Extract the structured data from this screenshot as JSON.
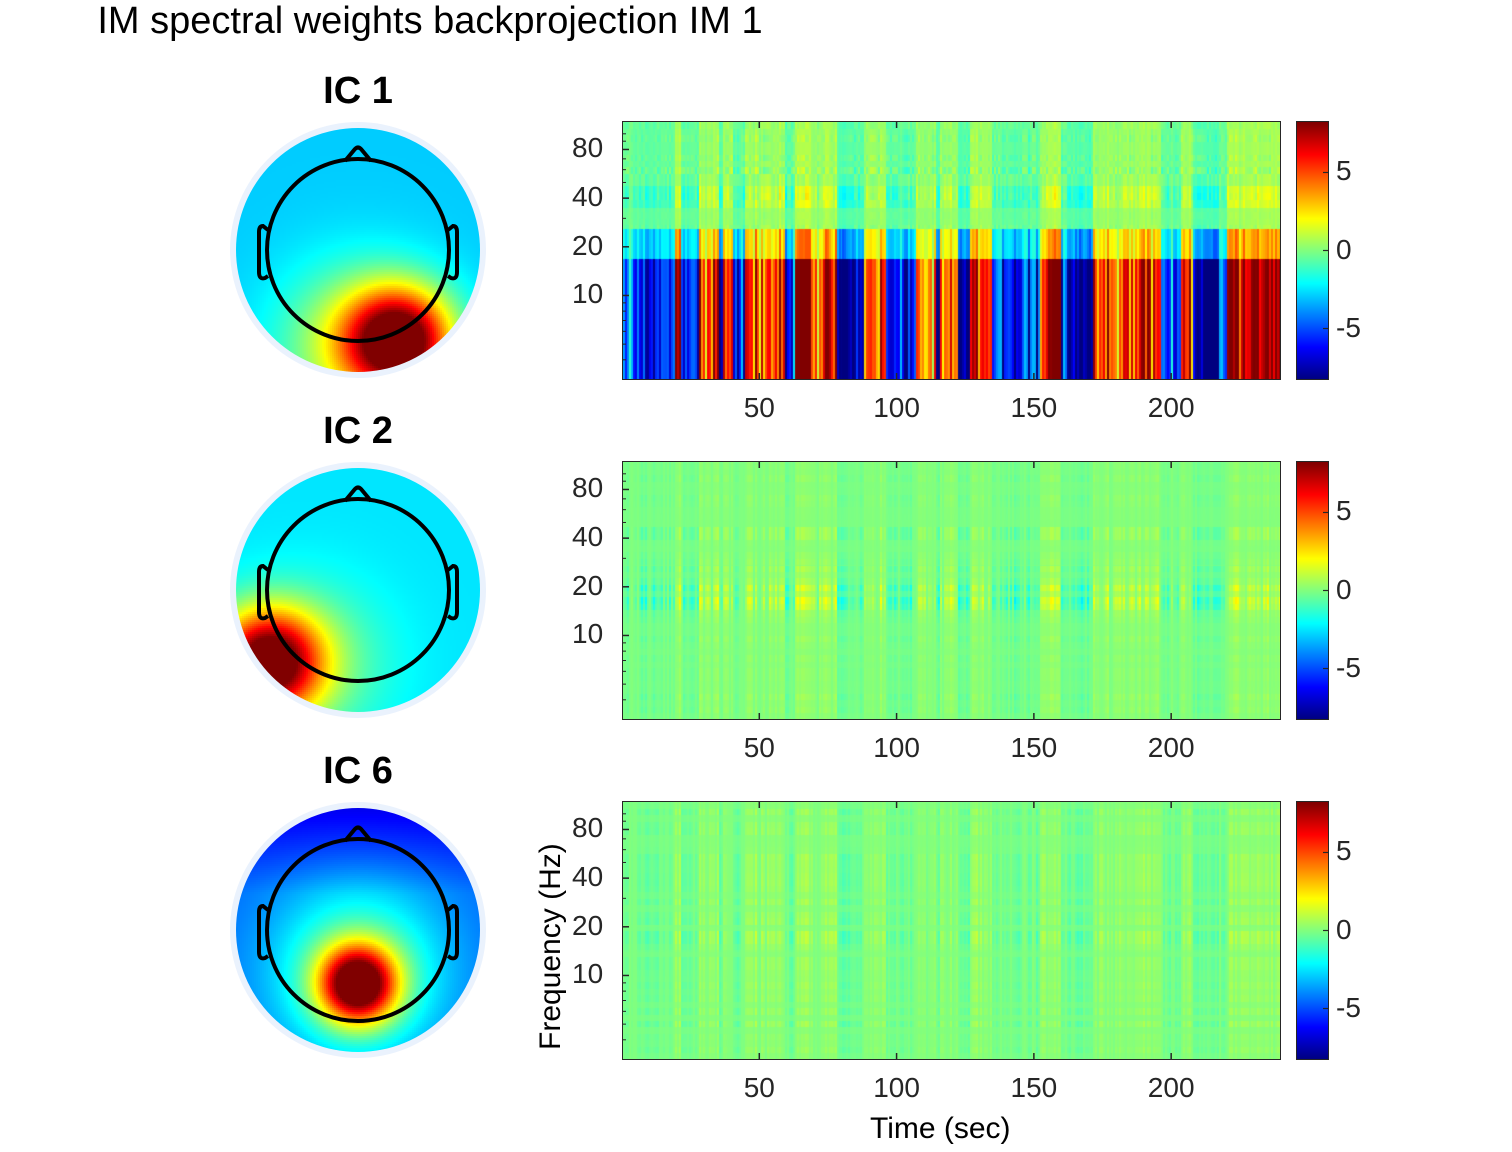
{
  "figure": {
    "title": "IM spectral weights backprojection IM 1"
  },
  "chart_data": [
    {
      "type": "heatmap",
      "panel": "IC 1",
      "topography_title": "IC 1",
      "title": "",
      "xlabel": "",
      "ylabel": "",
      "x_ticks": [
        50,
        100,
        150,
        200
      ],
      "y_ticks": [
        10,
        20,
        40,
        80
      ],
      "y_scale": "log",
      "xlim": [
        0,
        240
      ],
      "ylim": [
        3,
        120
      ],
      "colorbar": {
        "ticks": [
          -5,
          0,
          5
        ],
        "range": [
          -8.3,
          8.3
        ],
        "colormap": "jet"
      },
      "description": "Strong alternating positive/negative spectral weights concentrated below ~20 Hz (peak ~10 Hz), weaker at ~20-25 Hz and ~40 Hz",
      "amplitude": 1.0,
      "topography_peak": "right-posterior (red)",
      "grid": false
    },
    {
      "type": "heatmap",
      "panel": "IC 2",
      "topography_title": "IC 2",
      "title": "",
      "xlabel": "",
      "ylabel": "",
      "x_ticks": [
        50,
        100,
        150,
        200
      ],
      "y_ticks": [
        10,
        20,
        40,
        80
      ],
      "y_scale": "log",
      "xlim": [
        0,
        240
      ],
      "ylim": [
        3,
        120
      ],
      "colorbar": {
        "ticks": [
          -5,
          0,
          5
        ],
        "range": [
          -8.3,
          8.3
        ],
        "colormap": "jet"
      },
      "description": "Weak spectral weights near zero, slight modulation around 15-25 Hz",
      "amplitude": 0.22,
      "topography_peak": "left-posterior (red)",
      "grid": false
    },
    {
      "type": "heatmap",
      "panel": "IC 6",
      "topography_title": "IC 6",
      "title": "",
      "xlabel": "Time (sec)",
      "ylabel": "Frequency (Hz)",
      "x_ticks": [
        50,
        100,
        150,
        200
      ],
      "y_ticks": [
        10,
        20,
        40,
        80
      ],
      "y_scale": "log",
      "xlim": [
        0,
        240
      ],
      "ylim": [
        3,
        120
      ],
      "colorbar": {
        "ticks": [
          -5,
          0,
          5
        ],
        "range": [
          -8.3,
          8.3
        ],
        "colormap": "jet"
      },
      "description": "Weak spectral weights near zero with faint broadband banding",
      "amplitude": 0.15,
      "topography_peak": "central-posterior (red), frontal negative (blue)",
      "grid": false
    }
  ],
  "panels": [
    {
      "ic_title": "IC 1",
      "x_tick_labels": [
        "50",
        "100",
        "150",
        "200"
      ],
      "y_tick_labels": [
        "10",
        "20",
        "40",
        "80"
      ],
      "cbar_tick_labels": [
        "5",
        "0",
        "-5"
      ]
    },
    {
      "ic_title": "IC 2",
      "x_tick_labels": [
        "50",
        "100",
        "150",
        "200"
      ],
      "y_tick_labels": [
        "10",
        "20",
        "40",
        "80"
      ],
      "cbar_tick_labels": [
        "5",
        "0",
        "-5"
      ]
    },
    {
      "ic_title": "IC 6",
      "x_tick_labels": [
        "50",
        "100",
        "150",
        "200"
      ],
      "y_tick_labels": [
        "10",
        "20",
        "40",
        "80"
      ],
      "cbar_tick_labels": [
        "5",
        "0",
        "-5"
      ]
    }
  ],
  "axis_labels": {
    "x": "Time (sec)",
    "y": "Frequency (Hz)"
  }
}
